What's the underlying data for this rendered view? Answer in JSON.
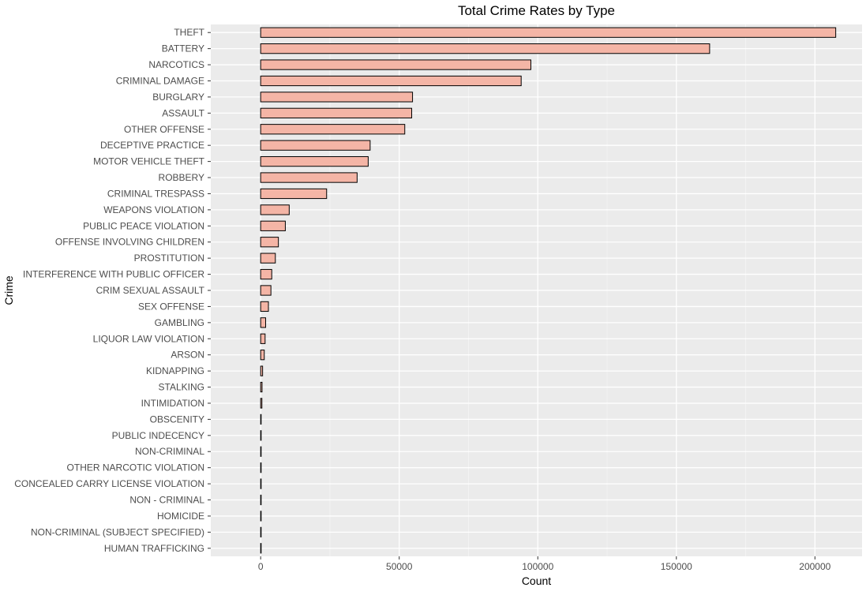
{
  "chart_data": {
    "type": "bar",
    "orientation": "horizontal",
    "title": "Total Crime Rates by Type",
    "xlabel": "Count",
    "ylabel": "Crime",
    "xlim": [
      -18000,
      217000
    ],
    "x_ticks": [
      0,
      50000,
      100000,
      150000,
      200000
    ],
    "x_tick_labels": [
      "0",
      "50000",
      "100000",
      "150000",
      "200000"
    ],
    "grid": true,
    "legend": "none",
    "colors": {
      "panel_background": "#ebebeb",
      "grid_major": "#ffffff",
      "grid_minor": "#f5f5f5",
      "bar_fill": "#f4b5a6",
      "bar_outline": "#000000",
      "text": "#000000",
      "tick_text": "#4d4d4d",
      "tick_mark": "#333333"
    },
    "categories": [
      "THEFT",
      "BATTERY",
      "NARCOTICS",
      "CRIMINAL DAMAGE",
      "BURGLARY",
      "ASSAULT",
      "OTHER OFFENSE",
      "DECEPTIVE PRACTICE",
      "MOTOR VEHICLE THEFT",
      "ROBBERY",
      "CRIMINAL TRESPASS",
      "WEAPONS VIOLATION",
      "PUBLIC PEACE VIOLATION",
      "OFFENSE INVOLVING CHILDREN",
      "PROSTITUTION",
      "INTERFERENCE WITH PUBLIC OFFICER",
      "CRIM SEXUAL ASSAULT",
      "SEX OFFENSE",
      "GAMBLING",
      "LIQUOR LAW VIOLATION",
      "ARSON",
      "KIDNAPPING",
      "STALKING",
      "INTIMIDATION",
      "OBSCENITY",
      "PUBLIC INDECENCY",
      "NON-CRIMINAL",
      "OTHER NARCOTIC VIOLATION",
      "CONCEALED CARRY LICENSE VIOLATION",
      "NON - CRIMINAL",
      "HOMICIDE",
      "NON-CRIMINAL (SUBJECT SPECIFIED)",
      "HUMAN TRAFFICKING"
    ],
    "values": [
      207500,
      162000,
      97500,
      94000,
      54800,
      54500,
      52000,
      39500,
      38800,
      34800,
      23800,
      10300,
      8900,
      6400,
      5300,
      4000,
      3700,
      2800,
      1800,
      1600,
      1300,
      700,
      500,
      450,
      150,
      100,
      80,
      60,
      40,
      20,
      15,
      10,
      5
    ]
  }
}
